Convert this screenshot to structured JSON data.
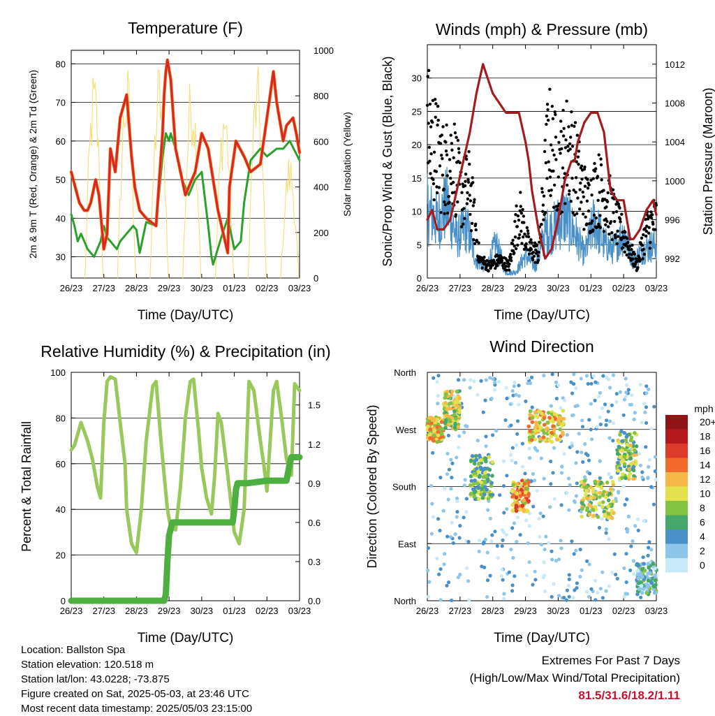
{
  "x_ticks": [
    "26/23",
    "27/23",
    "28/23",
    "29/23",
    "30/23",
    "01/23",
    "02/23",
    "03/23"
  ],
  "x_label": "Time (Day/UTC)",
  "panels": {
    "temperature": {
      "title": "Temperature (F)",
      "ylabel": "2m & 9m T (Red, Orange) & 2m Td (Green)",
      "ylabel2": "Solar Insolation (Yellow)",
      "yticks": [
        30,
        40,
        50,
        60,
        70,
        80
      ],
      "yticks2": [
        0,
        200,
        400,
        600,
        800,
        1000
      ]
    },
    "winds": {
      "title": "Winds (mph) & Pressure (mb)",
      "ylabel": "Sonic/Prop Wind & Gust (Blue, Black)",
      "ylabel2": "Station Pressure (Maroon)",
      "yticks": [
        0,
        5,
        10,
        15,
        20,
        25,
        30
      ],
      "yticks2": [
        992,
        996,
        1000,
        1004,
        1008,
        1012
      ]
    },
    "humidity": {
      "title": "Relative Humidity (%) & Precipitation (in)",
      "ylabel": "Percent & Total Rainfall",
      "yticks": [
        0,
        20,
        40,
        60,
        80,
        100
      ],
      "yticks2": [
        "0.0",
        "0.3",
        "0.6",
        "0.9",
        "1.2",
        "1.5"
      ]
    },
    "direction": {
      "title": "Wind Direction",
      "ylabel": "Direction (Colored By Speed)",
      "yticks": [
        "North",
        "East",
        "South",
        "West",
        "North"
      ],
      "legend_title": "mph",
      "legend_labels": [
        "0",
        "2",
        "4",
        "6",
        "8",
        "10",
        "12",
        "14",
        "16",
        "18",
        "20+"
      ],
      "legend_colors": [
        "#c7e9f8",
        "#8ec6ea",
        "#4a90c8",
        "#45a86a",
        "#82c341",
        "#e3e14e",
        "#f7b84a",
        "#f26a2e",
        "#dc3a2a",
        "#b5191d",
        "#8e1416"
      ]
    }
  },
  "chart_data": [
    {
      "type": "line",
      "title": "Temperature (F)",
      "xlabel": "Time (Day/UTC)",
      "ylabel": "2m & 9m T (Red, Orange) & 2m Td (Green)",
      "ylabel2": "Solar Insolation (Yellow)",
      "xlim": [
        0,
        7
      ],
      "ylim": [
        24.5,
        83.5
      ],
      "y2lim": [
        0,
        1000
      ],
      "series": [
        {
          "color": "#d62728",
          "x": [
            0,
            0.25,
            0.4,
            0.5,
            0.6,
            0.75,
            0.85,
            1.0,
            1.1,
            1.2,
            1.35,
            1.5,
            1.7,
            1.85,
            1.95,
            2.1,
            2.3,
            2.6,
            2.8,
            2.85,
            2.9,
            2.95,
            3.05,
            3.2,
            3.5,
            3.8,
            4.0,
            4.2,
            4.35,
            4.5,
            4.8,
            4.85,
            5.05,
            5.3,
            5.5,
            5.8,
            6.0,
            6.2,
            6.3,
            6.5,
            6.6,
            6.8,
            6.9,
            7.0
          ],
          "y": [
            52,
            44,
            42,
            42,
            44,
            50,
            46,
            32,
            36,
            58,
            52,
            66,
            72,
            56,
            48,
            42,
            40,
            38,
            62,
            72,
            78,
            81,
            76,
            58,
            46,
            52,
            62,
            58,
            50,
            42,
            31,
            48,
            60,
            56,
            52,
            54,
            66,
            78,
            70,
            60,
            64,
            66,
            62,
            57
          ]
        },
        {
          "color": "#2ca02c",
          "x": [
            0,
            0.1,
            0.2,
            0.3,
            0.5,
            0.7,
            0.9,
            1.0,
            1.1,
            1.2,
            1.4,
            1.5,
            1.7,
            1.9,
            2.0,
            2.1,
            2.3,
            2.6,
            2.8,
            2.9,
            3.0,
            3.05,
            3.2,
            3.4,
            3.6,
            3.8,
            4.0,
            4.2,
            4.3,
            4.35,
            4.6,
            4.8,
            5.0,
            5.2,
            5.3,
            5.5,
            5.8,
            6.0,
            6.3,
            6.5,
            6.7,
            7.0
          ],
          "y": [
            41,
            38,
            34,
            36,
            32,
            30,
            34,
            38,
            35,
            34,
            32,
            34,
            36,
            38,
            37,
            31,
            39,
            38,
            56,
            62,
            60,
            62,
            58,
            50,
            46,
            50,
            52,
            38,
            30,
            28,
            35,
            40,
            32,
            34,
            44,
            55,
            58,
            56,
            58,
            58,
            60,
            55
          ]
        },
        {
          "color": "#f4dc6c",
          "type": "insolation_daily",
          "x_peaks": [
            0.7,
            1.7,
            2.7,
            3.7,
            4.7,
            5.7,
            6.7
          ],
          "peak_values": [
            940,
            960,
            980,
            945,
            840,
            950,
            560
          ]
        }
      ]
    },
    {
      "type": "line",
      "title": "Winds (mph) & Pressure (mb)",
      "xlabel": "Time (Day/UTC)",
      "ylabel": "Sonic/Prop Wind & Gust (Blue, Black)",
      "ylabel2": "Station Pressure (Maroon)",
      "xlim": [
        0,
        7
      ],
      "ylim": [
        0,
        35
      ],
      "y2lim": [
        990,
        1014
      ],
      "series": [
        {
          "color": "#4a90c8",
          "x": [
            0,
            0.3,
            0.6,
            0.9,
            1.2,
            1.5,
            1.8,
            2.1,
            2.4,
            2.7,
            3.0,
            3.3,
            3.6,
            3.9,
            4.2,
            4.5,
            4.8,
            5.1,
            5.4,
            5.7,
            6.0,
            6.3,
            6.6,
            7.0
          ],
          "y": [
            12,
            10,
            13,
            7,
            9,
            3,
            2,
            6,
            1,
            1,
            4,
            2,
            8,
            9,
            11,
            8,
            4,
            10,
            6,
            5,
            8,
            3,
            5,
            6
          ]
        },
        {
          "color": "#000000",
          "x": [
            0,
            0.2,
            0.5,
            0.8,
            1.0,
            1.3,
            1.6,
            1.9,
            2.2,
            2.5,
            2.8,
            3.1,
            3.4,
            3.7,
            4.0,
            4.3,
            4.6,
            4.9,
            5.2,
            5.5,
            5.8,
            6.1,
            6.4,
            6.7,
            7.0
          ],
          "y": [
            25,
            22,
            18,
            20,
            14,
            15,
            3,
            2,
            3,
            2,
            11,
            5,
            4,
            23,
            18,
            22,
            17,
            12,
            15,
            13,
            9,
            6,
            2,
            8,
            10
          ]
        },
        {
          "color": "#a31d20",
          "x": [
            0,
            0.15,
            0.3,
            0.5,
            0.7,
            0.9,
            1.1,
            1.3,
            1.5,
            1.7,
            1.8,
            2.0,
            2.2,
            2.4,
            2.6,
            2.8,
            3.0,
            3.1,
            3.2,
            3.4,
            3.6,
            3.8,
            4.0,
            4.2,
            4.4,
            4.5,
            4.6,
            4.8,
            5.0,
            5.2,
            5.4,
            5.5,
            5.6,
            5.8,
            6.0,
            6.2,
            6.3,
            6.5,
            6.7,
            6.9,
            7.0
          ],
          "y": [
            996,
            997,
            995,
            995,
            996,
            999,
            1002,
            1005,
            1009,
            1012,
            1011,
            1009,
            1008,
            1007,
            1007,
            1007,
            1004,
            1002,
            999,
            995,
            992,
            993,
            996,
            1000,
            1002,
            1002,
            1004,
            1006,
            1007,
            1007,
            1005,
            1002,
            999,
            998,
            998,
            994,
            994,
            995,
            997,
            998,
            996.5
          ]
        }
      ]
    },
    {
      "type": "line",
      "title": "Relative Humidity (%) & Precipitation (in)",
      "xlabel": "Time (Day/UTC)",
      "ylabel": "Percent & Total Rainfall",
      "xlim": [
        0,
        7
      ],
      "ylim": [
        0,
        100
      ],
      "y2lim": [
        0,
        1.75
      ],
      "series": [
        {
          "color": "#98c95a",
          "x": [
            0,
            0.1,
            0.3,
            0.5,
            0.65,
            0.8,
            0.9,
            1.0,
            1.1,
            1.2,
            1.35,
            1.5,
            1.65,
            1.7,
            1.85,
            2.0,
            2.15,
            2.3,
            2.5,
            2.6,
            2.75,
            2.85,
            2.95,
            3.05,
            3.2,
            3.35,
            3.5,
            3.65,
            3.75,
            3.9,
            4.0,
            4.15,
            4.3,
            4.4,
            4.5,
            4.6,
            4.8,
            5.0,
            5.15,
            5.3,
            5.35,
            5.45,
            5.6,
            5.8,
            5.9,
            6.0,
            6.2,
            6.3,
            6.45,
            6.6,
            6.75,
            6.85,
            7.0
          ],
          "y": [
            66,
            68,
            78,
            70,
            62,
            50,
            45,
            78,
            96,
            98,
            97,
            78,
            60,
            40,
            25,
            21,
            40,
            70,
            94,
            96,
            70,
            55,
            40,
            32,
            31,
            50,
            80,
            96,
            97,
            75,
            58,
            45,
            38,
            55,
            82,
            78,
            55,
            30,
            25,
            40,
            58,
            96,
            92,
            70,
            60,
            48,
            92,
            96,
            80,
            62,
            55,
            95,
            92
          ]
        },
        {
          "color": "#4caf3f",
          "x": [
            0,
            2.85,
            2.9,
            2.95,
            3.0,
            3.1,
            4.0,
            4.95,
            5.0,
            5.05,
            5.1,
            5.4,
            6.0,
            6.6,
            6.7,
            6.75,
            7.0
          ],
          "y": [
            0,
            0,
            0.05,
            0.3,
            0.5,
            0.6,
            0.6,
            0.6,
            0.7,
            0.85,
            0.9,
            0.9,
            0.92,
            0.92,
            1.05,
            1.1,
            1.1
          ]
        }
      ]
    },
    {
      "type": "scatter",
      "title": "Wind Direction",
      "xlabel": "Time (Day/UTC)",
      "ylabel": "Direction (Colored By Speed)",
      "xlim": [
        0,
        7
      ],
      "ylim": [
        0,
        360
      ],
      "series": [
        {
          "name": "direction",
          "clusters": [
            {
              "x0": 0,
              "x1": 0.5,
              "y0": 250,
              "y1": 290,
              "speed": 11
            },
            {
              "x0": 0.5,
              "x1": 1.0,
              "y0": 270,
              "y1": 330,
              "speed": 9
            },
            {
              "x0": 1.3,
              "x1": 2.0,
              "y0": 160,
              "y1": 230,
              "speed": 7
            },
            {
              "x0": 2.6,
              "x1": 3.1,
              "y0": 140,
              "y1": 190,
              "speed": 12
            },
            {
              "x0": 3.1,
              "x1": 4.2,
              "y0": 250,
              "y1": 300,
              "speed": 11
            },
            {
              "x0": 4.7,
              "x1": 5.7,
              "y0": 130,
              "y1": 190,
              "speed": 9
            },
            {
              "x0": 5.8,
              "x1": 6.4,
              "y0": 190,
              "y1": 270,
              "speed": 8
            },
            {
              "x0": 6.4,
              "x1": 7.0,
              "y0": 10,
              "y1": 60,
              "speed": 4
            }
          ]
        }
      ]
    }
  ],
  "info": {
    "location": "Location: Ballston Spa",
    "elevation": "Station elevation: 120.518 m",
    "latlon": "Station lat/lon: 43.0228; -73.875",
    "created": "Figure created on Sat, 2025-05-03, at 23:46 UTC",
    "recent": "Most recent data timestamp: 2025/05/03 23:15:00"
  },
  "extremes": {
    "title": "Extremes For Past 7 Days",
    "subtitle": "(High/Low/Max Wind/Total Precipitation)",
    "values": "81.5/31.6/18.2/1.11"
  }
}
